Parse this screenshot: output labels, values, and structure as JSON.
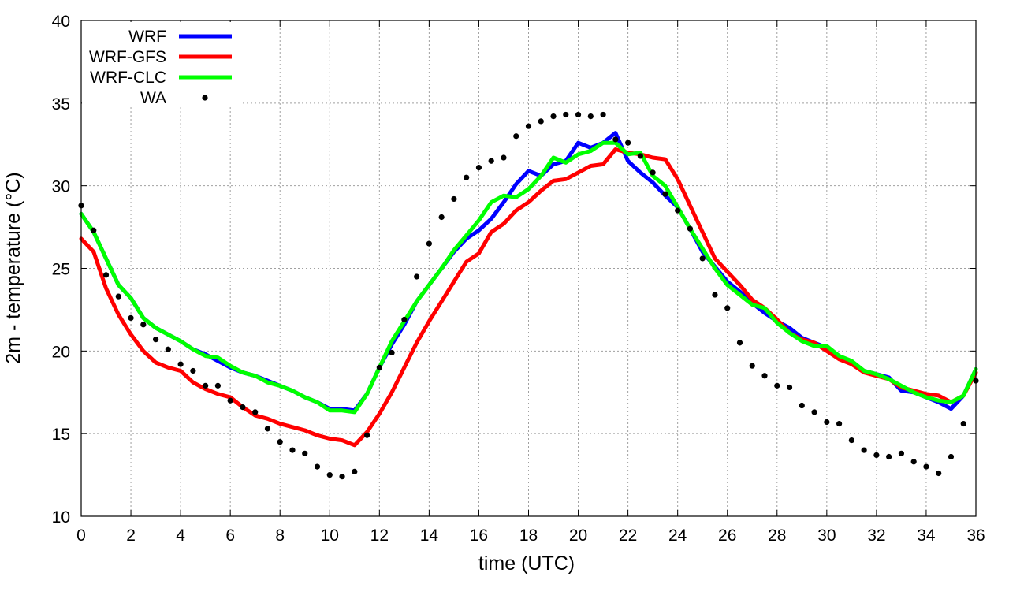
{
  "chart_data": {
    "type": "line",
    "xlabel": "time (UTC)",
    "ylabel": "2m - temperature (°C)",
    "xlim": [
      0,
      36
    ],
    "ylim": [
      10,
      40
    ],
    "xticks": [
      0,
      2,
      4,
      6,
      8,
      10,
      12,
      14,
      16,
      18,
      20,
      22,
      24,
      26,
      28,
      30,
      32,
      34,
      36
    ],
    "yticks": [
      10,
      15,
      20,
      25,
      30,
      35,
      40
    ],
    "grid": true,
    "legend_position": "top-left",
    "series": [
      {
        "name": "WRF",
        "style": "line",
        "color": "#0000ff",
        "x": [
          0,
          0.5,
          1,
          1.5,
          2,
          2.5,
          3,
          3.5,
          4,
          4.5,
          5,
          5.5,
          6,
          6.5,
          7,
          7.5,
          8,
          8.5,
          9,
          9.5,
          10,
          10.5,
          11,
          11.5,
          12,
          12.5,
          13,
          13.5,
          14,
          14.5,
          15,
          15.5,
          16,
          16.5,
          17,
          17.5,
          18,
          18.5,
          19,
          19.5,
          20,
          20.5,
          21,
          21.5,
          22,
          22.5,
          23,
          23.5,
          24,
          24.5,
          25,
          25.5,
          26,
          26.5,
          27,
          27.5,
          28,
          28.5,
          29,
          29.5,
          30,
          30.5,
          31,
          31.5,
          32,
          32.5,
          33,
          33.5,
          34,
          34.5,
          35,
          35.5,
          36
        ],
        "y": [
          28.3,
          27.2,
          25.6,
          24.0,
          23.2,
          22.0,
          21.4,
          21.0,
          20.6,
          20.1,
          19.8,
          19.4,
          19.0,
          18.7,
          18.5,
          18.2,
          17.9,
          17.6,
          17.2,
          16.9,
          16.5,
          16.5,
          16.4,
          17.4,
          19.0,
          20.4,
          21.6,
          23.0,
          24.0,
          25.0,
          26.0,
          26.8,
          27.3,
          28.0,
          29.0,
          30.1,
          30.9,
          30.6,
          31.3,
          31.5,
          32.6,
          32.3,
          32.6,
          33.2,
          31.5,
          30.8,
          30.2,
          29.4,
          28.7,
          27.4,
          26.0,
          25.1,
          24.2,
          23.6,
          22.9,
          22.3,
          21.8,
          21.4,
          20.8,
          20.5,
          20.2,
          19.7,
          19.3,
          18.8,
          18.6,
          18.4,
          17.6,
          17.5,
          17.2,
          16.9,
          16.5,
          17.3,
          18.9
        ]
      },
      {
        "name": "WRF-GFS",
        "style": "line",
        "color": "#ff0000",
        "x": [
          0,
          0.5,
          1,
          1.5,
          2,
          2.5,
          3,
          3.5,
          4,
          4.5,
          5,
          5.5,
          6,
          6.5,
          7,
          7.5,
          8,
          8.5,
          9,
          9.5,
          10,
          10.5,
          11,
          11.5,
          12,
          12.5,
          13,
          13.5,
          14,
          14.5,
          15,
          15.5,
          16,
          16.5,
          17,
          17.5,
          18,
          18.5,
          19,
          19.5,
          20,
          20.5,
          21,
          21.5,
          22,
          22.5,
          23,
          23.5,
          24,
          24.5,
          25,
          25.5,
          26,
          26.5,
          27,
          27.5,
          28,
          28.5,
          29,
          29.5,
          30,
          30.5,
          31,
          31.5,
          32,
          32.5,
          33,
          33.5,
          34,
          34.5,
          35,
          35.5,
          36
        ],
        "y": [
          26.8,
          26.0,
          23.8,
          22.2,
          21.0,
          20.0,
          19.3,
          19.0,
          18.8,
          18.1,
          17.7,
          17.4,
          17.2,
          16.6,
          16.1,
          15.9,
          15.6,
          15.4,
          15.2,
          14.9,
          14.7,
          14.6,
          14.3,
          15.1,
          16.2,
          17.5,
          19.0,
          20.5,
          21.8,
          23.0,
          24.2,
          25.4,
          25.9,
          27.2,
          27.7,
          28.5,
          29.0,
          29.7,
          30.3,
          30.4,
          30.8,
          31.2,
          31.3,
          32.2,
          32.0,
          31.9,
          31.7,
          31.6,
          30.4,
          28.8,
          27.2,
          25.6,
          24.8,
          24.0,
          23.1,
          22.6,
          21.9,
          21.1,
          20.7,
          20.5,
          20.0,
          19.5,
          19.2,
          18.7,
          18.5,
          18.3,
          17.8,
          17.6,
          17.4,
          17.3,
          16.9,
          17.3,
          18.7
        ]
      },
      {
        "name": "WRF-CLC",
        "style": "line",
        "color": "#00ff00",
        "x": [
          0,
          0.5,
          1,
          1.5,
          2,
          2.5,
          3,
          3.5,
          4,
          4.5,
          5,
          5.5,
          6,
          6.5,
          7,
          7.5,
          8,
          8.5,
          9,
          9.5,
          10,
          10.5,
          11,
          11.5,
          12,
          12.5,
          13,
          13.5,
          14,
          14.5,
          15,
          15.5,
          16,
          16.5,
          17,
          17.5,
          18,
          18.5,
          19,
          19.5,
          20,
          20.5,
          21,
          21.5,
          22,
          22.5,
          23,
          23.5,
          24,
          24.5,
          25,
          25.5,
          26,
          26.5,
          27,
          27.5,
          28,
          28.5,
          29,
          29.5,
          30,
          30.5,
          31,
          31.5,
          32,
          32.5,
          33,
          33.5,
          34,
          34.5,
          35,
          35.5,
          36
        ],
        "y": [
          28.3,
          27.2,
          25.6,
          24.0,
          23.2,
          22.0,
          21.4,
          21.0,
          20.6,
          20.1,
          19.7,
          19.6,
          19.1,
          18.7,
          18.5,
          18.1,
          17.9,
          17.6,
          17.2,
          16.9,
          16.4,
          16.4,
          16.3,
          17.4,
          19.0,
          20.6,
          21.8,
          23.0,
          24.0,
          25.0,
          26.1,
          27.0,
          27.9,
          29.0,
          29.4,
          29.3,
          29.8,
          30.6,
          31.7,
          31.4,
          31.9,
          32.1,
          32.6,
          32.6,
          31.9,
          32.0,
          30.6,
          30.0,
          28.7,
          27.4,
          26.2,
          25.0,
          24.0,
          23.4,
          22.8,
          22.6,
          21.7,
          21.1,
          20.6,
          20.3,
          20.3,
          19.7,
          19.4,
          18.8,
          18.6,
          18.3,
          17.9,
          17.5,
          17.2,
          17.0,
          16.9,
          17.3,
          18.9
        ]
      },
      {
        "name": "WA",
        "style": "points",
        "color": "#000000",
        "x": [
          0,
          0.5,
          1,
          1.5,
          2,
          2.5,
          3,
          3.5,
          4,
          4.5,
          5,
          5.5,
          6,
          6.5,
          7,
          7.5,
          8,
          8.5,
          9,
          9.5,
          10,
          10.5,
          11,
          11.5,
          12,
          12.5,
          13,
          13.5,
          14,
          14.5,
          15,
          15.5,
          16,
          16.5,
          17,
          17.5,
          18,
          18.5,
          19,
          19.5,
          20,
          20.5,
          21,
          21.5,
          22,
          22.5,
          23,
          23.5,
          24,
          24.5,
          25,
          25.5,
          26,
          26.5,
          27,
          27.5,
          28,
          28.5,
          29,
          29.5,
          30,
          30.5,
          31,
          31.5,
          32,
          32.5,
          33,
          33.5,
          34,
          34.5,
          35,
          35.5,
          36
        ],
        "y": [
          28.8,
          27.3,
          24.6,
          23.3,
          22.0,
          21.6,
          20.7,
          20.1,
          19.2,
          18.8,
          17.9,
          17.9,
          17.0,
          16.6,
          16.3,
          15.3,
          14.5,
          14.0,
          13.8,
          13.0,
          12.5,
          12.4,
          12.7,
          14.9,
          19.0,
          19.9,
          21.9,
          24.5,
          26.5,
          28.1,
          29.2,
          30.5,
          31.1,
          31.5,
          31.7,
          33.0,
          33.6,
          33.9,
          34.2,
          34.3,
          34.3,
          34.2,
          34.3,
          32.8,
          32.6,
          31.8,
          30.8,
          29.5,
          28.5,
          27.4,
          25.6,
          23.4,
          22.6,
          20.5,
          19.1,
          18.5,
          17.9,
          17.8,
          16.7,
          16.3,
          15.7,
          15.6,
          14.6,
          14.0,
          13.7,
          13.6,
          13.8,
          13.3,
          13.0,
          12.6,
          13.6,
          15.6,
          18.2
        ]
      }
    ]
  }
}
